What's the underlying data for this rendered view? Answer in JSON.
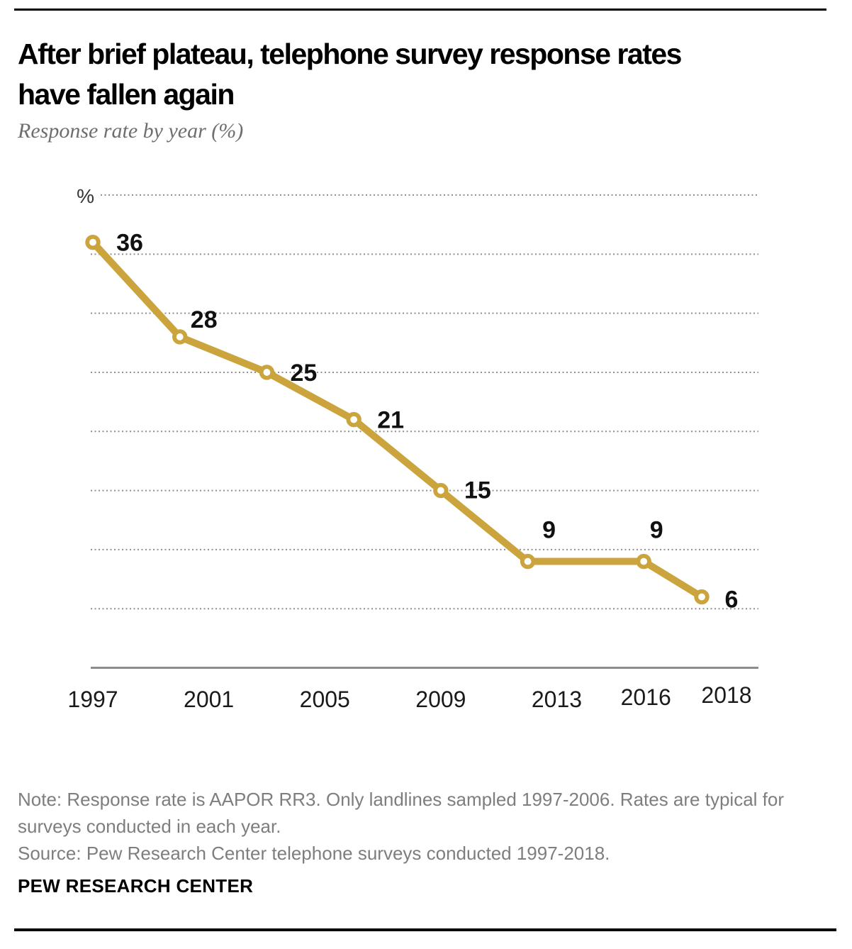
{
  "page": {
    "title_lines": {
      "line1": "After brief plateau, telephone survey response rates",
      "line2": "have fallen again"
    },
    "subtitle": "Response rate by year (%)",
    "note": "Note: Response rate is AAPOR RR3. Only landlines sampled 1997-2006. Rates are typical for surveys conducted in each year.",
    "source": "Source: Pew Research Center telephone surveys conducted 1997-2018.",
    "brand": "PEW RESEARCH CENTER"
  },
  "chart_data": {
    "type": "line",
    "title": "After brief plateau, telephone survey response rates have fallen again",
    "subtitle": "Response rate by year (%)",
    "series": [
      {
        "name": "Response rate",
        "x": [
          1997,
          2000,
          2003,
          2006,
          2009,
          2012,
          2016,
          2018
        ],
        "values": [
          36,
          28,
          25,
          21,
          15,
          9,
          9,
          6
        ]
      }
    ],
    "x_tick_labels": [
      "1997",
      "2001",
      "2005",
      "2009",
      "2013",
      "2016",
      "2018"
    ],
    "y_unit_label": "%",
    "ylim": [
      0,
      40
    ],
    "xlim": [
      1997,
      2018
    ],
    "gridline_values": [
      40,
      35,
      30,
      25,
      20,
      15,
      10,
      5
    ],
    "grid_style": "dotted",
    "legend": "none",
    "line_color": "#CBA43D",
    "marker_style": "open-circle",
    "marker_fill": "#ffffff",
    "grid_color": "#8f8f8f",
    "axis_color": "#8c8c8c",
    "data_label_color": "#111111",
    "tick_label_color": "#1a1a1a"
  }
}
